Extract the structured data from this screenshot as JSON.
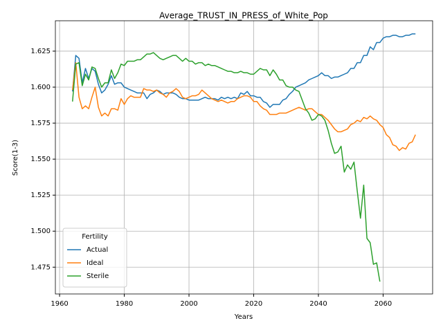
{
  "chart_data": {
    "type": "line",
    "title": "Average_TRUST_IN_PRESS_of_White_Pop",
    "x_label": "Years",
    "y_label": "Score(1-3)",
    "legend_title": "Fertility",
    "legend_position": "lower left",
    "grid": true,
    "xlim": [
      1958.7,
      2075.3
    ],
    "ylim": [
      1.4564,
      1.6461
    ],
    "xticks": [
      1960,
      1980,
      2000,
      2020,
      2040,
      2060
    ],
    "yticks": [
      {
        "value": 1.475,
        "label": "1.475"
      },
      {
        "value": 1.5,
        "label": "1.500"
      },
      {
        "value": 1.525,
        "label": "1.525"
      },
      {
        "value": 1.55,
        "label": "1.550"
      },
      {
        "value": 1.575,
        "label": "1.575"
      },
      {
        "value": 1.6,
        "label": "1.600"
      },
      {
        "value": 1.625,
        "label": "1.625"
      }
    ],
    "x": [
      1964,
      1965,
      1966,
      1967,
      1968,
      1969,
      1970,
      1971,
      1972,
      1973,
      1974,
      1975,
      1976,
      1977,
      1978,
      1979,
      1980,
      1981,
      1982,
      1983,
      1984,
      1985,
      1986,
      1987,
      1988,
      1989,
      1990,
      1991,
      1992,
      1993,
      1994,
      1995,
      1996,
      1997,
      1998,
      1999,
      2000,
      2001,
      2002,
      2003,
      2004,
      2005,
      2006,
      2007,
      2008,
      2009,
      2010,
      2011,
      2012,
      2013,
      2014,
      2015,
      2016,
      2017,
      2018,
      2019,
      2020,
      2021,
      2022,
      2023,
      2024,
      2025,
      2026,
      2027,
      2028,
      2029,
      2030,
      2031,
      2032,
      2033,
      2034,
      2035,
      2036,
      2037,
      2038,
      2039,
      2040,
      2041,
      2042,
      2043,
      2044,
      2045,
      2046,
      2047,
      2048,
      2049,
      2050,
      2051,
      2052,
      2053,
      2054,
      2055,
      2056,
      2057,
      2058,
      2059,
      2060,
      2061,
      2062,
      2063,
      2064,
      2065,
      2066,
      2067,
      2068,
      2069,
      2070
    ],
    "series": [
      {
        "name": "Actual",
        "color": "#1f77b4",
        "values": [
          1.597,
          1.622,
          1.62,
          1.603,
          1.613,
          1.606,
          1.613,
          1.611,
          1.602,
          1.596,
          1.598,
          1.602,
          1.608,
          1.602,
          1.603,
          1.603,
          1.6,
          1.599,
          1.598,
          1.597,
          1.596,
          1.596,
          1.596,
          1.592,
          1.595,
          1.596,
          1.598,
          1.597,
          1.595,
          1.596,
          1.596,
          1.596,
          1.595,
          1.593,
          1.592,
          1.592,
          1.591,
          1.591,
          1.591,
          1.591,
          1.592,
          1.593,
          1.592,
          1.592,
          1.592,
          1.591,
          1.593,
          1.592,
          1.593,
          1.592,
          1.593,
          1.592,
          1.596,
          1.595,
          1.597,
          1.594,
          1.594,
          1.593,
          1.593,
          1.59,
          1.589,
          1.586,
          1.588,
          1.588,
          1.588,
          1.591,
          1.592,
          1.595,
          1.597,
          1.6,
          1.601,
          1.602,
          1.603,
          1.605,
          1.606,
          1.607,
          1.608,
          1.61,
          1.608,
          1.608,
          1.606,
          1.607,
          1.607,
          1.608,
          1.609,
          1.61,
          1.613,
          1.613,
          1.617,
          1.617,
          1.622,
          1.622,
          1.628,
          1.626,
          1.631,
          1.631,
          1.634,
          1.635,
          1.635,
          1.636,
          1.636,
          1.635,
          1.635,
          1.636,
          1.636,
          1.637,
          1.637
        ]
      },
      {
        "name": "Ideal",
        "color": "#ff7f0e",
        "values": [
          1.598,
          1.617,
          1.593,
          1.585,
          1.587,
          1.585,
          1.593,
          1.6,
          1.586,
          1.58,
          1.582,
          1.58,
          1.585,
          1.585,
          1.584,
          1.592,
          1.588,
          1.592,
          1.594,
          1.593,
          1.593,
          1.593,
          1.599,
          1.598,
          1.598,
          1.597,
          1.598,
          1.596,
          1.595,
          1.593,
          1.596,
          1.597,
          1.599,
          1.597,
          1.593,
          1.592,
          1.593,
          1.594,
          1.594,
          1.595,
          1.598,
          1.596,
          1.594,
          1.592,
          1.591,
          1.59,
          1.591,
          1.59,
          1.589,
          1.59,
          1.59,
          1.592,
          1.593,
          1.594,
          1.594,
          1.593,
          1.59,
          1.59,
          1.587,
          1.585,
          1.584,
          1.581,
          1.581,
          1.581,
          1.582,
          1.582,
          1.582,
          1.583,
          1.584,
          1.585,
          1.586,
          1.585,
          1.584,
          1.585,
          1.585,
          1.583,
          1.581,
          1.581,
          1.579,
          1.577,
          1.574,
          1.571,
          1.569,
          1.569,
          1.57,
          1.571,
          1.574,
          1.575,
          1.577,
          1.576,
          1.579,
          1.578,
          1.58,
          1.578,
          1.577,
          1.574,
          1.572,
          1.567,
          1.565,
          1.56,
          1.559,
          1.556,
          1.558,
          1.557,
          1.561,
          1.562,
          1.567
        ]
      },
      {
        "name": "Sterile",
        "color": "#2ca02c",
        "values": [
          1.59,
          1.616,
          1.617,
          1.601,
          1.609,
          1.605,
          1.614,
          1.613,
          1.606,
          1.6,
          1.603,
          1.603,
          1.612,
          1.606,
          1.61,
          1.616,
          1.615,
          1.618,
          1.618,
          1.618,
          1.619,
          1.619,
          1.621,
          1.623,
          1.623,
          1.624,
          1.622,
          1.62,
          1.619,
          1.62,
          1.621,
          1.622,
          1.622,
          1.62,
          1.618,
          1.62,
          1.618,
          1.618,
          1.616,
          1.617,
          1.617,
          1.615,
          1.616,
          1.615,
          1.615,
          1.614,
          1.613,
          1.612,
          1.611,
          1.611,
          1.61,
          1.61,
          1.611,
          1.61,
          1.61,
          1.609,
          1.609,
          1.611,
          1.613,
          1.612,
          1.612,
          1.608,
          1.612,
          1.609,
          1.605,
          1.605,
          1.601,
          1.6,
          1.6,
          1.598,
          1.597,
          1.591,
          1.585,
          1.582,
          1.577,
          1.578,
          1.581,
          1.58,
          1.577,
          1.57,
          1.561,
          1.554,
          1.555,
          1.559,
          1.541,
          1.546,
          1.543,
          1.548,
          1.528,
          1.509,
          1.532,
          1.495,
          1.492,
          1.477,
          1.478,
          1.465,
          null,
          null,
          null,
          null,
          null,
          null,
          null,
          null,
          null,
          null,
          null
        ]
      }
    ]
  }
}
